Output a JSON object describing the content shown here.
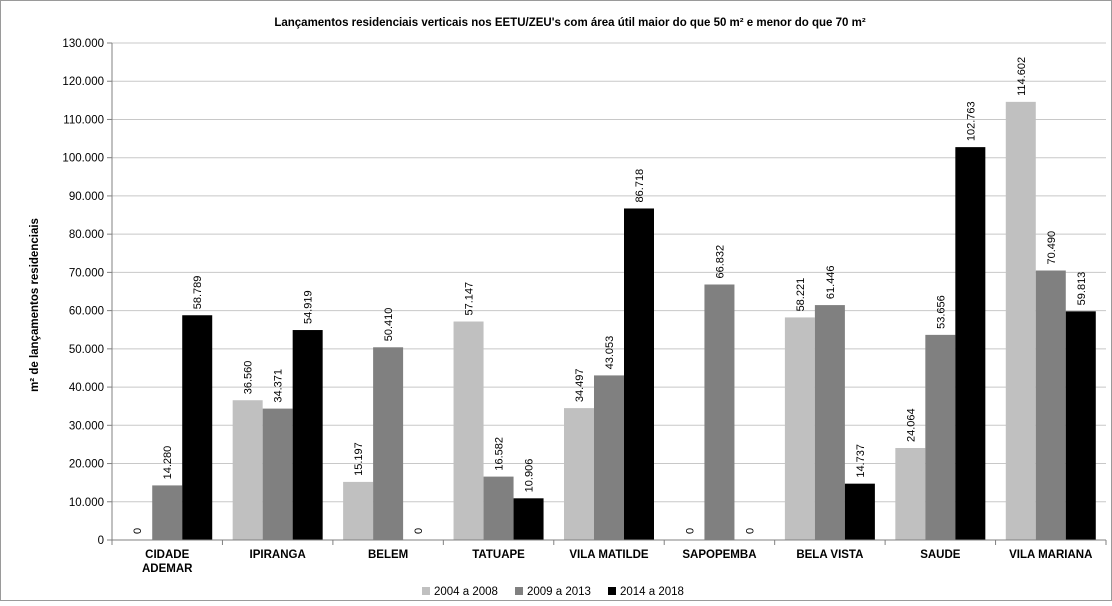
{
  "chart_data": {
    "type": "bar",
    "title": "Lançamentos residenciais verticais nos EETU/ZEU's com área útil maior do que 50 m² e menor do que 70 m²",
    "ylabel": "m² de lançamentos residenciais",
    "xlabel": "",
    "ylim": [
      0,
      130000
    ],
    "ytick_step": 10000,
    "y_ticks": [
      "0",
      "10.000",
      "20.000",
      "30.000",
      "40.000",
      "50.000",
      "60.000",
      "70.000",
      "80.000",
      "90.000",
      "100.000",
      "110.000",
      "120.000",
      "130.000"
    ],
    "grid": true,
    "legend_position": "bottom",
    "categories": [
      [
        "CIDADE",
        "ADEMAR"
      ],
      [
        "IPIRANGA"
      ],
      [
        "BELEM"
      ],
      [
        "TATUAPE"
      ],
      [
        "VILA MATILDE"
      ],
      [
        "SAPOPEMBA"
      ],
      [
        "BELA VISTA"
      ],
      [
        "SAUDE"
      ],
      [
        "VILA MARIANA"
      ]
    ],
    "series": [
      {
        "name": "2004 a 2008",
        "color": "#c0c0c0",
        "values": [
          0,
          36560,
          15197,
          57147,
          34497,
          0,
          58221,
          24064,
          114602
        ],
        "labels": [
          "0",
          "36.560",
          "15.197",
          "57.147",
          "34.497",
          "0",
          "58.221",
          "24.064",
          "114.602"
        ]
      },
      {
        "name": "2009 a 2013",
        "color": "#808080",
        "values": [
          14280,
          34371,
          50410,
          16582,
          43053,
          66832,
          61446,
          53656,
          70490
        ],
        "labels": [
          "14.280",
          "34.371",
          "50.410",
          "16.582",
          "43.053",
          "66.832",
          "61.446",
          "53.656",
          "70.490"
        ]
      },
      {
        "name": "2014 a 2018",
        "color": "#000000",
        "values": [
          58789,
          54919,
          0,
          10906,
          86718,
          0,
          14737,
          102763,
          59813
        ],
        "labels": [
          "58.789",
          "54.919",
          "0",
          "10.906",
          "86.718",
          "0",
          "14.737",
          "102.763",
          "59.813"
        ]
      }
    ]
  }
}
